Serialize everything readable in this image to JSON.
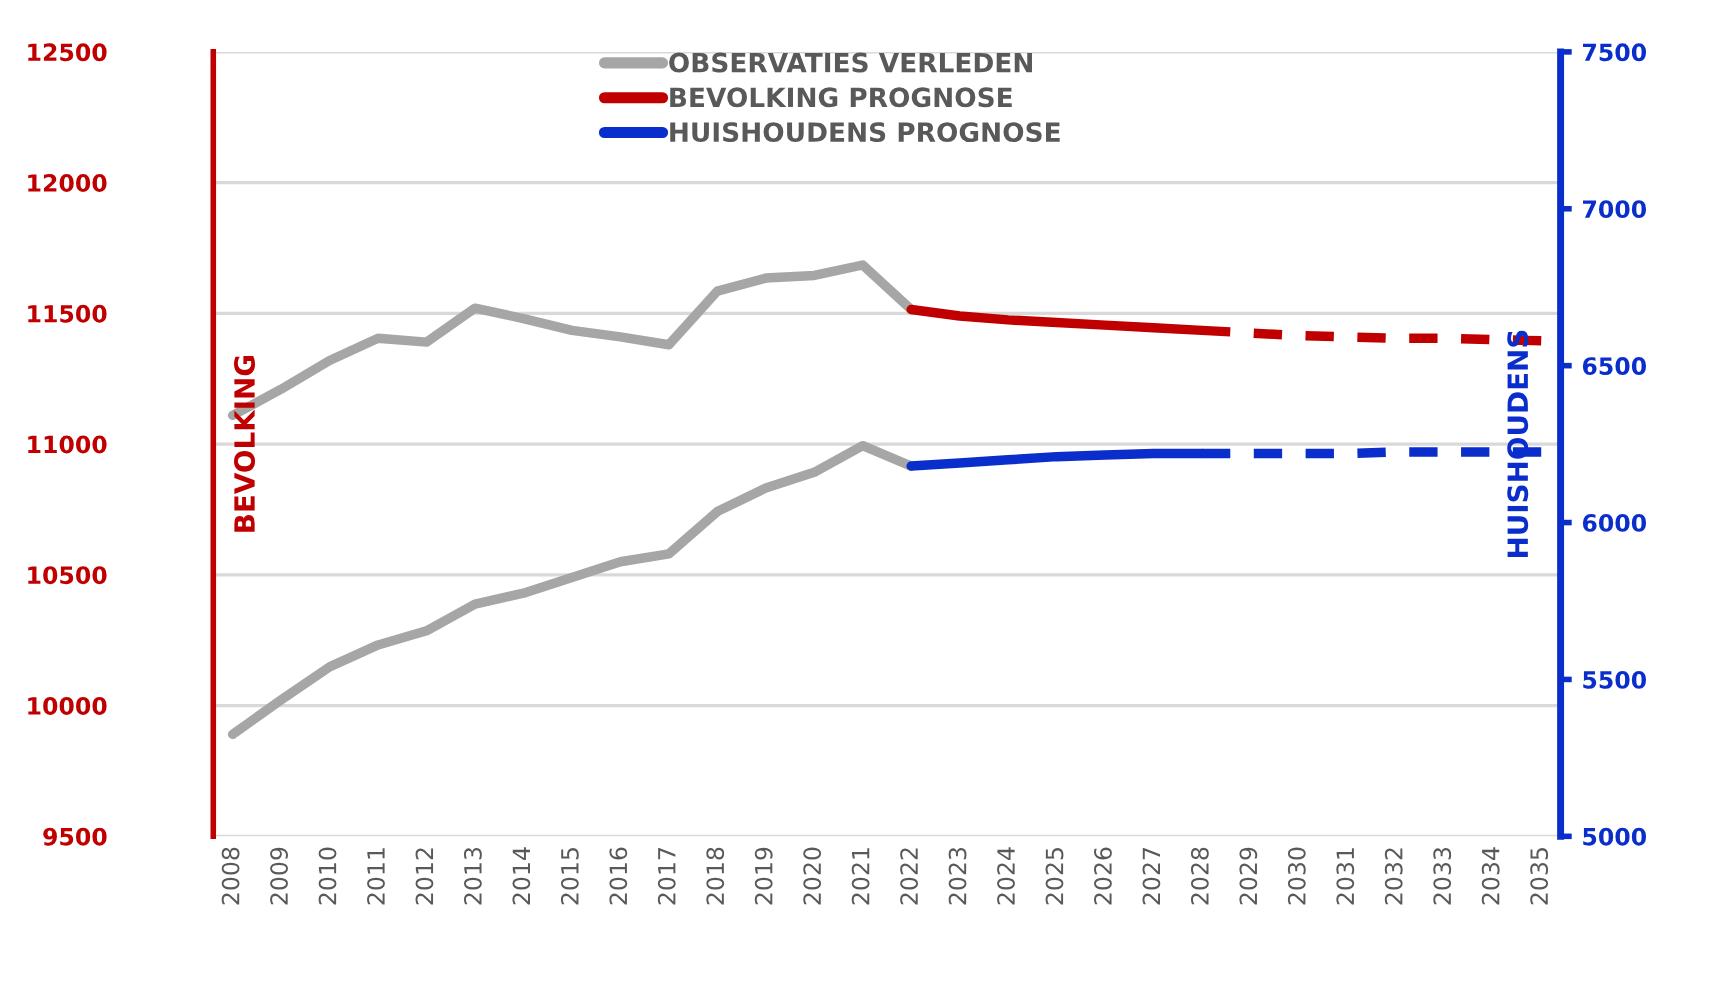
{
  "chart_data": {
    "type": "line",
    "ylabel": "BEVOLKING",
    "y2label": "HUISHOUDENS",
    "categories": [
      "2008",
      "2009",
      "2010",
      "2011",
      "2012",
      "2013",
      "2014",
      "2015",
      "2016",
      "2017",
      "2018",
      "2019",
      "2020",
      "2021",
      "2022",
      "2023",
      "2024",
      "2025",
      "2026",
      "2027",
      "2028",
      "2029",
      "2030",
      "2031",
      "2032",
      "2033",
      "2034",
      "2035"
    ],
    "series": [
      {
        "name": "OBSERVATIES VERLEDEN",
        "color": "#a6a6a6",
        "line_style": "solid",
        "values": [
          11110,
          11210,
          11320,
          11405,
          11390,
          11520,
          11480,
          11435,
          11410,
          11380,
          11585,
          11635,
          11645,
          11685,
          11515,
          null,
          null,
          null,
          null,
          null,
          null,
          null,
          null,
          null,
          null,
          null,
          null,
          null
        ]
      },
      {
        "color": "#a6a6a6",
        "axis": "y2",
        "line_style": "solid",
        "values": [
          5325,
          5435,
          5540,
          5610,
          5655,
          5740,
          5775,
          5825,
          5875,
          5900,
          6035,
          6110,
          6160,
          6245,
          6180,
          null,
          null,
          null,
          null,
          null,
          null,
          null,
          null,
          null,
          null,
          null,
          null,
          null
        ]
      },
      {
        "name": "BEVOLKING PROGNOSE",
        "color": "#c00000",
        "line_style": "solid",
        "values": [
          null,
          null,
          null,
          null,
          null,
          null,
          null,
          null,
          null,
          null,
          null,
          null,
          null,
          null,
          11515,
          11490,
          11475,
          11465,
          11455,
          11445,
          11435,
          null,
          null,
          null,
          null,
          null,
          null,
          null
        ]
      },
      {
        "color": "#c00000",
        "line_style": "dashed",
        "values": [
          null,
          null,
          null,
          null,
          null,
          null,
          null,
          null,
          null,
          null,
          null,
          null,
          null,
          null,
          null,
          null,
          null,
          null,
          null,
          null,
          11435,
          11425,
          11415,
          11410,
          11405,
          11405,
          11400,
          11395
        ]
      },
      {
        "name": "HUISHOUDENS PROGNOSE",
        "color": "#0a2ecc",
        "axis": "y2",
        "line_style": "solid",
        "values": [
          null,
          null,
          null,
          null,
          null,
          null,
          null,
          null,
          null,
          null,
          null,
          null,
          null,
          null,
          6180,
          6190,
          6200,
          6210,
          6215,
          6220,
          6220,
          null,
          null,
          null,
          null,
          null,
          null,
          null
        ]
      },
      {
        "color": "#0a2ecc",
        "axis": "y2",
        "line_style": "dashed",
        "values": [
          null,
          null,
          null,
          null,
          null,
          null,
          null,
          null,
          null,
          null,
          null,
          null,
          null,
          null,
          null,
          null,
          null,
          null,
          null,
          null,
          6220,
          6220,
          6220,
          6220,
          6225,
          6225,
          6225,
          6225
        ]
      }
    ],
    "ylim": [
      9500,
      12500
    ],
    "yticks": [
      9500,
      10000,
      10500,
      11000,
      11500,
      12000,
      12500
    ],
    "y2lim": [
      5000,
      7500
    ],
    "y2ticks": [
      5000,
      5500,
      6000,
      6500,
      7000,
      7500
    ],
    "grid": "y",
    "legend": "top",
    "marker": "none"
  }
}
